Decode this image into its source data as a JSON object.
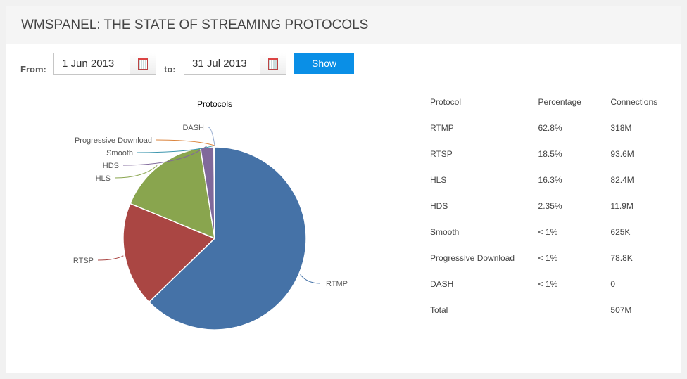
{
  "title": "WMSPANEL: THE STATE OF STREAMING PROTOCOLS",
  "filter": {
    "from_label": "From:",
    "from_value": "1 Jun 2013",
    "to_label": "to:",
    "to_value": "31 Jul 2013",
    "show_label": "Show"
  },
  "table": {
    "headers": [
      "Protocol",
      "Percentage",
      "Connections"
    ],
    "rows": [
      [
        "RTMP",
        "62.8%",
        "318M"
      ],
      [
        "RTSP",
        "18.5%",
        "93.6M"
      ],
      [
        "HLS",
        "16.3%",
        "82.4M"
      ],
      [
        "HDS",
        "2.35%",
        "11.9M"
      ],
      [
        "Smooth",
        "< 1%",
        "625K"
      ],
      [
        "Progressive Download",
        "< 1%",
        "78.8K"
      ],
      [
        "DASH",
        "< 1%",
        "0"
      ],
      [
        "Total",
        "",
        "507M"
      ]
    ]
  },
  "chart_data": {
    "type": "pie",
    "title": "Protocols",
    "categories": [
      "RTMP",
      "RTSP",
      "HLS",
      "HDS",
      "Smooth",
      "Progressive Download",
      "DASH"
    ],
    "values": [
      62.8,
      18.5,
      16.3,
      2.35,
      0.12,
      0.02,
      0
    ],
    "colors": [
      "#4572a7",
      "#aa4643",
      "#89a54e",
      "#80699b",
      "#3d96ae",
      "#db843d",
      "#92a8cd"
    ]
  }
}
